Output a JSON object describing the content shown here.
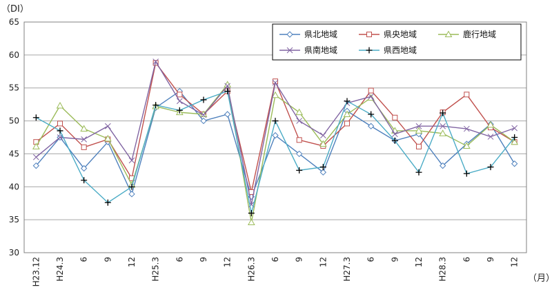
{
  "chart_data": {
    "type": "line",
    "ylabel": "（DI）",
    "xlabel": "（月）",
    "ylim": [
      30,
      65
    ],
    "yticks": [
      30,
      35,
      40,
      45,
      50,
      55,
      60,
      65
    ],
    "grid": true,
    "legend_position": "top-right",
    "x": [
      "H23.12",
      "H24.3",
      "6",
      "9",
      "12",
      "H25.3",
      "6",
      "9",
      "12",
      "H26.3",
      "6",
      "9",
      "12",
      "H27.3",
      "6",
      "9",
      "12",
      "H28.3",
      "6",
      "9",
      "12"
    ],
    "series": [
      {
        "name": "県北地域",
        "color": "#4f81bd",
        "marker": "diamond",
        "values": [
          43.2,
          47.5,
          42.8,
          46.8,
          38.9,
          52.0,
          54.5,
          50.0,
          51.0,
          38.5,
          47.8,
          45.0,
          42.2,
          51.5,
          49.2,
          47.0,
          48.0,
          43.2,
          46.5,
          49.5,
          43.5
        ]
      },
      {
        "name": "県央地域",
        "color": "#c0504d",
        "marker": "square",
        "values": [
          46.8,
          49.6,
          46.0,
          47.2,
          41.3,
          58.8,
          54.0,
          51.0,
          54.5,
          39.2,
          56.0,
          47.1,
          46.2,
          49.6,
          54.6,
          50.5,
          46.1,
          51.3,
          54.0,
          49.0,
          46.8
        ]
      },
      {
        "name": "鹿行地域",
        "color": "#9bbb59",
        "marker": "triangle",
        "values": [
          46.1,
          52.3,
          48.8,
          47.3,
          40.3,
          52.2,
          51.3,
          51.0,
          55.5,
          34.6,
          53.9,
          51.3,
          46.5,
          51.0,
          53.5,
          48.5,
          48.5,
          48.1,
          46.2,
          49.4,
          46.8
        ]
      },
      {
        "name": "県南地域",
        "color": "#8064a2",
        "marker": "x",
        "values": [
          44.5,
          47.5,
          47.2,
          49.2,
          44.0,
          59.0,
          53.0,
          50.9,
          55.3,
          37.3,
          55.8,
          50.0,
          47.8,
          52.7,
          53.7,
          48.0,
          49.2,
          49.2,
          48.8,
          47.6,
          48.9
        ]
      },
      {
        "name": "県西地域",
        "color": "#4bacc6",
        "marker": "plus",
        "values": [
          50.5,
          48.5,
          41.0,
          37.6,
          40.0,
          52.4,
          51.6,
          53.2,
          54.5,
          36.0,
          50.0,
          42.5,
          43.0,
          53.0,
          51.0,
          47.0,
          42.2,
          51.2,
          42.0,
          43.0,
          47.5
        ]
      }
    ]
  }
}
